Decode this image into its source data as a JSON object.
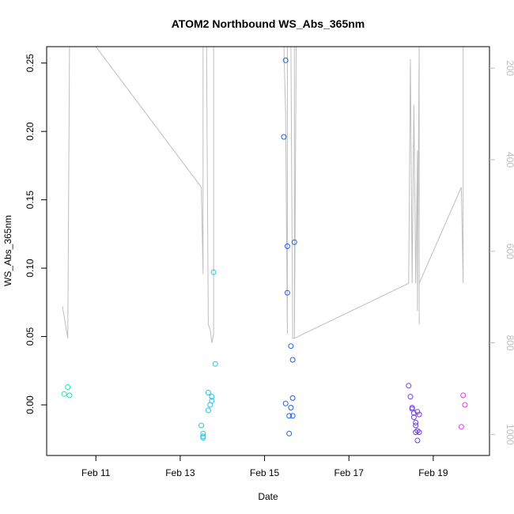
{
  "chart_data": {
    "type": "scatter",
    "title": "ATOM2 Northbound WS_Abs_365nm",
    "xlabel": "Date",
    "ylabel": "WS_Abs_365nm",
    "x_range_days": [
      "2024-02-09T20:00",
      "2024-02-20T08:00"
    ],
    "xlim": [
      "2024-02-09T20:00",
      "2024-02-20T08:00"
    ],
    "ylim": [
      -0.037,
      0.262
    ],
    "x_ticks": [
      {
        "date": "2024-02-11",
        "label": "Feb 11"
      },
      {
        "date": "2024-02-13",
        "label": "Feb 13"
      },
      {
        "date": "2024-02-15",
        "label": "Feb 15"
      },
      {
        "date": "2024-02-17",
        "label": "Feb 17"
      },
      {
        "date": "2024-02-19",
        "label": "Feb 19"
      }
    ],
    "y_ticks": [
      0.0,
      0.05,
      0.1,
      0.15,
      0.2,
      0.25
    ],
    "y_tick_labels": [
      "0.00",
      "0.05",
      "0.10",
      "0.15",
      "0.20",
      "0.25"
    ],
    "right_axis": {
      "ylim": [
        1046,
        153
      ],
      "reversed": true,
      "ticks": [
        200,
        400,
        600,
        800,
        1000
      ],
      "tick_labels": [
        "200",
        "400",
        "600",
        "800",
        "1000"
      ],
      "color": "#bebebe"
    },
    "grid": false,
    "legend": "none",
    "points": [
      {
        "x": "2024-02-10T06:00",
        "y": 0.008,
        "color": "#20e8a0"
      },
      {
        "x": "2024-02-10T08:00",
        "y": 0.013,
        "color": "#20e8a0"
      },
      {
        "x": "2024-02-10T09:00",
        "y": 0.007,
        "color": "#20e8a0"
      },
      {
        "x": "2024-02-13T12:00",
        "y": -0.015,
        "color": "#20c8e8"
      },
      {
        "x": "2024-02-13T13:00",
        "y": -0.021,
        "color": "#20c8e8"
      },
      {
        "x": "2024-02-13T13:00",
        "y": -0.023,
        "color": "#20c8e8"
      },
      {
        "x": "2024-02-13T13:00",
        "y": -0.024,
        "color": "#20c8e8"
      },
      {
        "x": "2024-02-13T16:00",
        "y": -0.004,
        "color": "#20c8e8"
      },
      {
        "x": "2024-02-13T16:00",
        "y": 0.009,
        "color": "#20c8e8"
      },
      {
        "x": "2024-02-13T17:00",
        "y": 0.0,
        "color": "#20c8e8"
      },
      {
        "x": "2024-02-13T18:00",
        "y": 0.006,
        "color": "#20c8e8"
      },
      {
        "x": "2024-02-13T18:00",
        "y": 0.003,
        "color": "#20c8e8"
      },
      {
        "x": "2024-02-13T19:00",
        "y": 0.097,
        "color": "#20c8e8"
      },
      {
        "x": "2024-02-13T20:00",
        "y": 0.03,
        "color": "#20c8e8"
      },
      {
        "x": "2024-02-15T11:00",
        "y": 0.196,
        "color": "#2060e8"
      },
      {
        "x": "2024-02-15T12:00",
        "y": 0.252,
        "color": "#2060e8"
      },
      {
        "x": "2024-02-15T12:00",
        "y": 0.001,
        "color": "#2060e8"
      },
      {
        "x": "2024-02-15T13:00",
        "y": 0.082,
        "color": "#2060e8"
      },
      {
        "x": "2024-02-15T13:00",
        "y": 0.116,
        "color": "#2060e8"
      },
      {
        "x": "2024-02-15T14:00",
        "y": -0.021,
        "color": "#2060e8"
      },
      {
        "x": "2024-02-15T14:00",
        "y": -0.008,
        "color": "#2060e8"
      },
      {
        "x": "2024-02-15T15:00",
        "y": -0.002,
        "color": "#2060e8"
      },
      {
        "x": "2024-02-15T15:00",
        "y": 0.043,
        "color": "#2060e8"
      },
      {
        "x": "2024-02-15T16:00",
        "y": -0.008,
        "color": "#2060e8"
      },
      {
        "x": "2024-02-15T16:00",
        "y": 0.033,
        "color": "#2060e8"
      },
      {
        "x": "2024-02-15T16:00",
        "y": 0.005,
        "color": "#2060e8"
      },
      {
        "x": "2024-02-15T17:00",
        "y": 0.119,
        "color": "#2060e8"
      },
      {
        "x": "2024-02-18T10:00",
        "y": 0.014,
        "color": "#7040e0"
      },
      {
        "x": "2024-02-18T11:00",
        "y": 0.006,
        "color": "#7040e0"
      },
      {
        "x": "2024-02-18T12:00",
        "y": -0.002,
        "color": "#7040e0"
      },
      {
        "x": "2024-02-18T12:00",
        "y": -0.003,
        "color": "#7040e0"
      },
      {
        "x": "2024-02-18T13:00",
        "y": -0.006,
        "color": "#7040e0"
      },
      {
        "x": "2024-02-18T13:00",
        "y": -0.009,
        "color": "#7040e0"
      },
      {
        "x": "2024-02-18T14:00",
        "y": -0.013,
        "color": "#7040e0"
      },
      {
        "x": "2024-02-18T14:00",
        "y": -0.015,
        "color": "#7040e0"
      },
      {
        "x": "2024-02-18T14:00",
        "y": -0.02,
        "color": "#7040e0"
      },
      {
        "x": "2024-02-18T15:00",
        "y": -0.019,
        "color": "#7040e0"
      },
      {
        "x": "2024-02-18T15:00",
        "y": -0.026,
        "color": "#7040e0"
      },
      {
        "x": "2024-02-18T15:00",
        "y": -0.005,
        "color": "#7040e0"
      },
      {
        "x": "2024-02-18T16:00",
        "y": -0.007,
        "color": "#7040e0"
      },
      {
        "x": "2024-02-18T16:00",
        "y": -0.02,
        "color": "#7040e0"
      },
      {
        "x": "2024-02-19T16:00",
        "y": -0.016,
        "color": "#e040e0"
      },
      {
        "x": "2024-02-19T17:00",
        "y": 0.007,
        "color": "#e040e0"
      },
      {
        "x": "2024-02-19T18:00",
        "y": 0.0,
        "color": "#e040e0"
      }
    ],
    "aux_line": {
      "color": "#bebebe",
      "axis": "right",
      "points": [
        {
          "x": "2024-02-10T05:00",
          "y": 720
        },
        {
          "x": "2024-02-10T08:00",
          "y": 790
        },
        {
          "x": "2024-02-10T09:00",
          "y": 153
        },
        {
          "x": "2024-02-11T00:00",
          "y": 153
        },
        {
          "x": "2024-02-13T12:00",
          "y": 460
        },
        {
          "x": "2024-02-13T13:00",
          "y": 650
        },
        {
          "x": "2024-02-13T13:00",
          "y": 153
        },
        {
          "x": "2024-02-13T15:00",
          "y": 153
        },
        {
          "x": "2024-02-13T16:00",
          "y": 760
        },
        {
          "x": "2024-02-13T17:00",
          "y": 770
        },
        {
          "x": "2024-02-13T18:00",
          "y": 800
        },
        {
          "x": "2024-02-13T19:00",
          "y": 780
        },
        {
          "x": "2024-02-13T19:00",
          "y": 153
        },
        {
          "x": "2024-02-15T11:00",
          "y": 153
        },
        {
          "x": "2024-02-15T12:00",
          "y": 300
        },
        {
          "x": "2024-02-15T13:00",
          "y": 780
        },
        {
          "x": "2024-02-15T13:00",
          "y": 153
        },
        {
          "x": "2024-02-15T15:00",
          "y": 153
        },
        {
          "x": "2024-02-15T16:00",
          "y": 790
        },
        {
          "x": "2024-02-15T17:00",
          "y": 790
        },
        {
          "x": "2024-02-15T17:00",
          "y": 153
        },
        {
          "x": "2024-02-15T18:00",
          "y": 153
        },
        {
          "x": "2024-02-15T17:00",
          "y": 790
        },
        {
          "x": "2024-02-18T10:00",
          "y": 670
        },
        {
          "x": "2024-02-18T11:00",
          "y": 180
        },
        {
          "x": "2024-02-18T12:00",
          "y": 670
        },
        {
          "x": "2024-02-18T13:00",
          "y": 280
        },
        {
          "x": "2024-02-18T14:00",
          "y": 670
        },
        {
          "x": "2024-02-18T15:00",
          "y": 380
        },
        {
          "x": "2024-02-18T15:00",
          "y": 730
        },
        {
          "x": "2024-02-18T16:00",
          "y": 153
        },
        {
          "x": "2024-02-18T16:00",
          "y": 760
        },
        {
          "x": "2024-02-18T16:00",
          "y": 670
        },
        {
          "x": "2024-02-19T16:00",
          "y": 460
        },
        {
          "x": "2024-02-19T17:00",
          "y": 670
        },
        {
          "x": "2024-02-19T17:00",
          "y": 153
        }
      ]
    }
  }
}
